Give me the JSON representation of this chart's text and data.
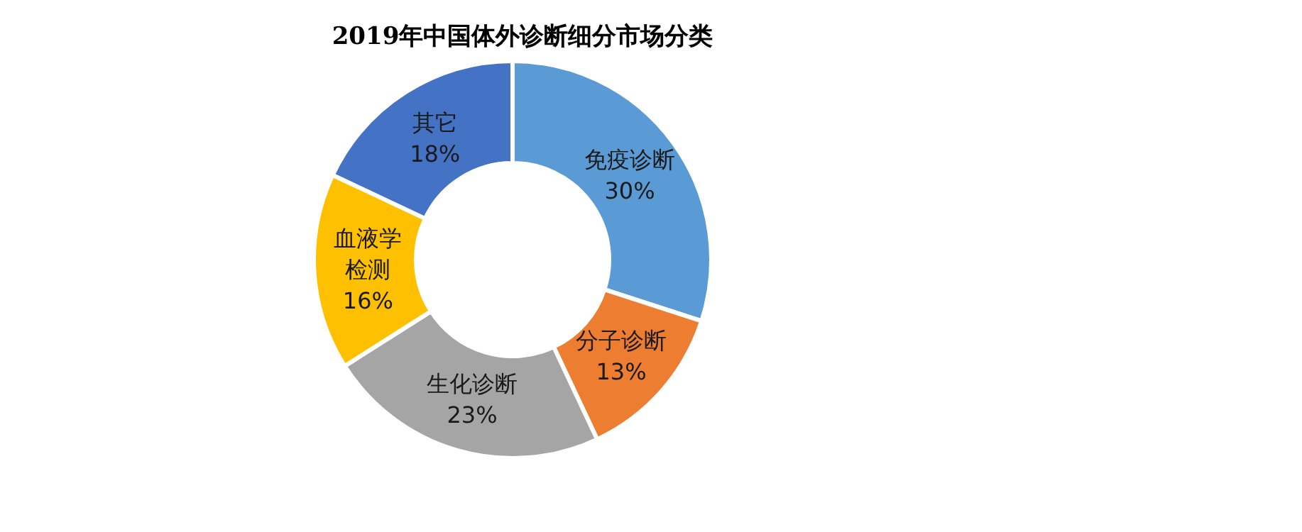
{
  "chart_data": {
    "type": "donut",
    "title": "2019年中国体外诊断细分市场分类",
    "categories": [
      "免疫诊断",
      "分子诊断",
      "生化诊断",
      "血液学检测",
      "其它"
    ],
    "values": [
      30,
      13,
      23,
      16,
      18
    ],
    "value_labels": [
      "30%",
      "13%",
      "23%",
      "16%",
      "18%"
    ],
    "colors": [
      "#5b9bd5",
      "#ed7d31",
      "#a5a5a5",
      "#ffc000",
      "#4472c4"
    ],
    "legend": false
  }
}
